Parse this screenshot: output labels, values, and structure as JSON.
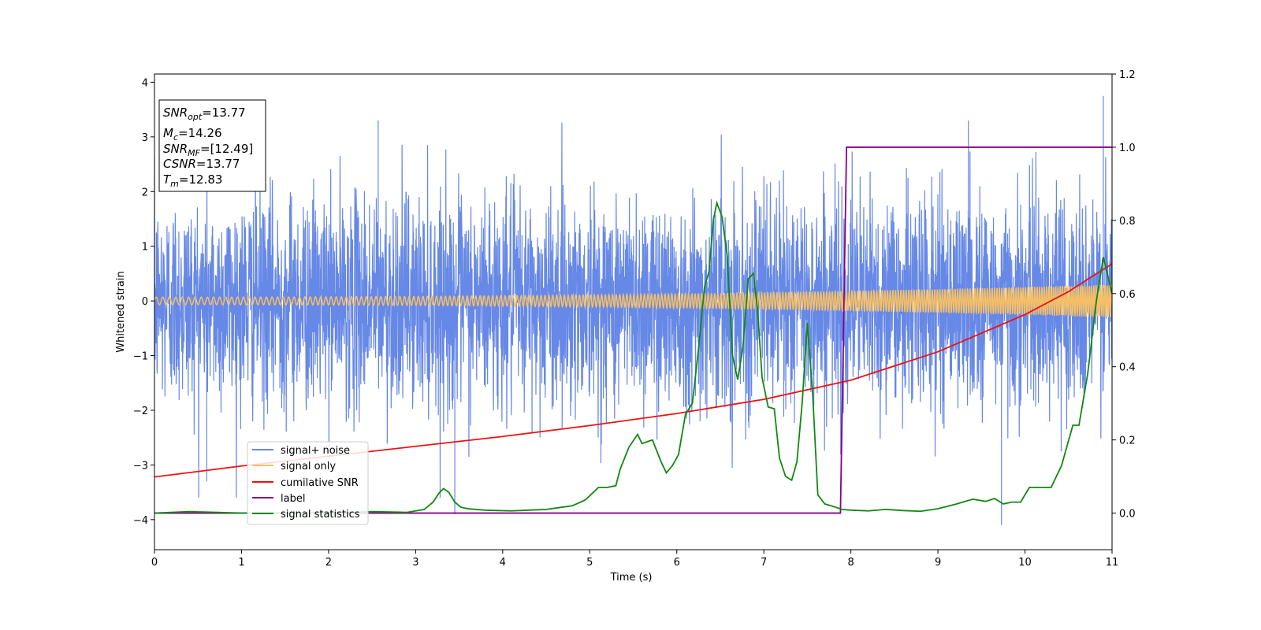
{
  "chart_data": {
    "type": "line",
    "xlabel": "Time (s)",
    "ylabel": "Whitened strain",
    "xlim": [
      0,
      11
    ],
    "ylim": [
      -4.55,
      4.15
    ],
    "y2lim": [
      -0.1,
      1.2
    ],
    "x_ticks": [
      "0",
      "1",
      "2",
      "3",
      "4",
      "5",
      "6",
      "7",
      "8",
      "9",
      "10",
      "11"
    ],
    "y_ticks": [
      "4",
      "3",
      "2",
      "1",
      "0",
      "−1",
      "−2",
      "−3",
      "−4"
    ],
    "y2_ticks": [
      "1.2",
      "1.0",
      "0.8",
      "0.6",
      "0.4",
      "0.2",
      "0.0"
    ],
    "grid": false,
    "legend_position": "lower-left",
    "stats_box": {
      "snr_opt": "SNR",
      "snr_opt_sub": "opt",
      "snr_opt_value": "=13.77",
      "mc": "M",
      "mc_sub": "c",
      "mc_value": "=14.26",
      "snr_mf": "SNR",
      "snr_mf_sub": "MF",
      "snr_mf_value": "=[12.49]",
      "csnr": "CSNR",
      "csnr_value": "=13.77",
      "tm": "T",
      "tm_sub": "m",
      "tm_value": "=12.83"
    },
    "series": [
      {
        "name": "signal+ noise",
        "color": "#6688e6",
        "axis": "left",
        "description_values": "noise band roughly -2.5 to 2.5 with spikes up to 3.8 and down to -4.1",
        "notable_peaks": [
          [
            0.6,
            -3.3
          ],
          [
            2.57,
            3.3
          ],
          [
            3.45,
            -3.9
          ],
          [
            9.35,
            3.3
          ],
          [
            9.73,
            -4.1
          ],
          [
            10.9,
            3.75
          ]
        ]
      },
      {
        "name": "signal only",
        "color": "#f5bf66",
        "axis": "left",
        "amplitude_start": 0.07,
        "amplitude_end": 0.3
      },
      {
        "name": "cumilative SNR",
        "color": "#ee1111",
        "axis": "left",
        "points": [
          [
            0,
            -3.22
          ],
          [
            1,
            -3.02
          ],
          [
            2,
            -2.84
          ],
          [
            3,
            -2.66
          ],
          [
            4,
            -2.48
          ],
          [
            5,
            -2.28
          ],
          [
            6,
            -2.06
          ],
          [
            7,
            -1.8
          ],
          [
            8,
            -1.45
          ],
          [
            9,
            -0.93
          ],
          [
            10,
            -0.25
          ],
          [
            10.5,
            0.17
          ],
          [
            11,
            0.68
          ]
        ]
      },
      {
        "name": "label",
        "color": "#880088",
        "axis": "right",
        "points": [
          [
            0,
            0.0
          ],
          [
            7.88,
            0.0
          ],
          [
            7.95,
            1.0
          ],
          [
            11,
            1.0
          ]
        ]
      },
      {
        "name": "signal statistics",
        "color": "#118811",
        "axis": "right",
        "points": [
          [
            0,
            0.0
          ],
          [
            0.4,
            0.004
          ],
          [
            1.0,
            0.0
          ],
          [
            2.0,
            0.0
          ],
          [
            2.5,
            0.004
          ],
          [
            2.9,
            0.002
          ],
          [
            3.1,
            0.01
          ],
          [
            3.2,
            0.03
          ],
          [
            3.27,
            0.055
          ],
          [
            3.32,
            0.067
          ],
          [
            3.38,
            0.057
          ],
          [
            3.45,
            0.03
          ],
          [
            3.52,
            0.016
          ],
          [
            3.6,
            0.012
          ],
          [
            3.8,
            0.008
          ],
          [
            3.95,
            0.007
          ],
          [
            4.1,
            0.006
          ],
          [
            4.3,
            0.008
          ],
          [
            4.5,
            0.01
          ],
          [
            4.65,
            0.015
          ],
          [
            4.8,
            0.02
          ],
          [
            4.95,
            0.036
          ],
          [
            5.1,
            0.07
          ],
          [
            5.2,
            0.07
          ],
          [
            5.3,
            0.075
          ],
          [
            5.35,
            0.12
          ],
          [
            5.45,
            0.18
          ],
          [
            5.55,
            0.215
          ],
          [
            5.6,
            0.19
          ],
          [
            5.72,
            0.2
          ],
          [
            5.82,
            0.14
          ],
          [
            5.88,
            0.11
          ],
          [
            5.95,
            0.13
          ],
          [
            6.02,
            0.16
          ],
          [
            6.1,
            0.27
          ],
          [
            6.18,
            0.3
          ],
          [
            6.25,
            0.45
          ],
          [
            6.32,
            0.62
          ],
          [
            6.37,
            0.66
          ],
          [
            6.42,
            0.8
          ],
          [
            6.46,
            0.848
          ],
          [
            6.52,
            0.81
          ],
          [
            6.58,
            0.7
          ],
          [
            6.64,
            0.43
          ],
          [
            6.7,
            0.365
          ],
          [
            6.76,
            0.455
          ],
          [
            6.82,
            0.64
          ],
          [
            6.88,
            0.655
          ],
          [
            6.93,
            0.55
          ],
          [
            6.98,
            0.37
          ],
          [
            7.05,
            0.29
          ],
          [
            7.12,
            0.285
          ],
          [
            7.18,
            0.15
          ],
          [
            7.25,
            0.1
          ],
          [
            7.32,
            0.09
          ],
          [
            7.38,
            0.14
          ],
          [
            7.44,
            0.3
          ],
          [
            7.5,
            0.52
          ],
          [
            7.56,
            0.33
          ],
          [
            7.62,
            0.05
          ],
          [
            7.7,
            0.025
          ],
          [
            7.8,
            0.018
          ],
          [
            7.9,
            0.01
          ],
          [
            8.0,
            0.008
          ],
          [
            8.2,
            0.006
          ],
          [
            8.4,
            0.01
          ],
          [
            8.6,
            0.007
          ],
          [
            8.8,
            0.005
          ],
          [
            9.0,
            0.012
          ],
          [
            9.2,
            0.024
          ],
          [
            9.4,
            0.038
          ],
          [
            9.55,
            0.032
          ],
          [
            9.65,
            0.04
          ],
          [
            9.75,
            0.025
          ],
          [
            9.85,
            0.03
          ],
          [
            9.95,
            0.03
          ],
          [
            10.05,
            0.07
          ],
          [
            10.15,
            0.07
          ],
          [
            10.3,
            0.07
          ],
          [
            10.42,
            0.13
          ],
          [
            10.55,
            0.24
          ],
          [
            10.62,
            0.24
          ],
          [
            10.72,
            0.38
          ],
          [
            10.82,
            0.58
          ],
          [
            10.9,
            0.7
          ],
          [
            11.0,
            0.6
          ]
        ]
      }
    ]
  }
}
